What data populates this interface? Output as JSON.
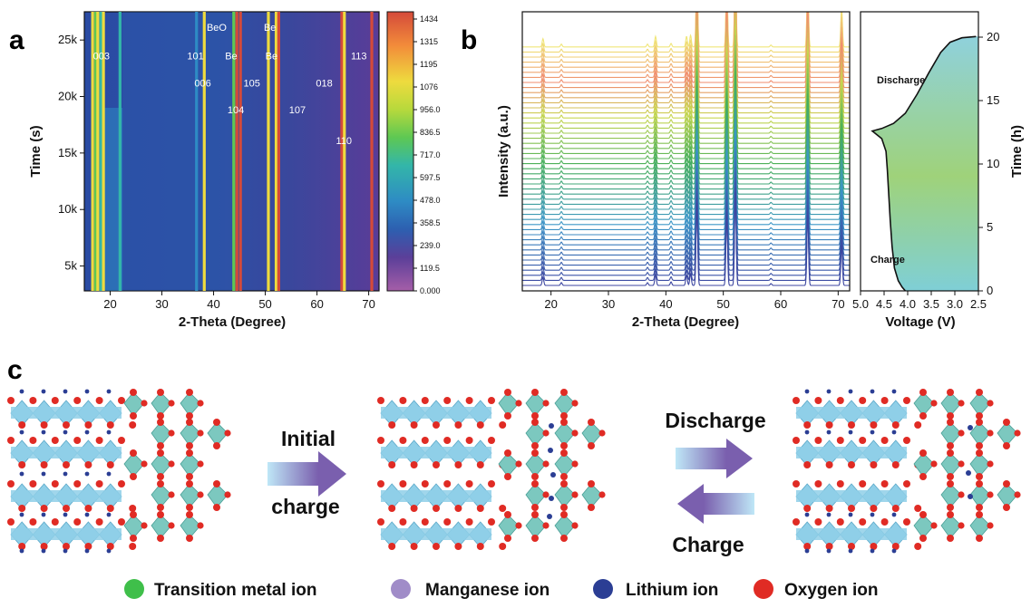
{
  "panels": {
    "a": "a",
    "b": "b",
    "c": "c"
  },
  "chart_data": [
    {
      "type": "heatmap",
      "panel": "a",
      "xlabel": "2-Theta (Degree)",
      "ylabel": "Time (s)",
      "xlim": [
        15,
        72
      ],
      "ylim": [
        2800,
        27500
      ],
      "x_ticks": [
        20,
        30,
        40,
        50,
        60,
        70
      ],
      "y_ticks": [
        {
          "value": 5000,
          "label": "5k"
        },
        {
          "value": 10000,
          "label": "10k"
        },
        {
          "value": 15000,
          "label": "15k"
        },
        {
          "value": 20000,
          "label": "20k"
        },
        {
          "value": 25000,
          "label": "25k"
        }
      ],
      "colorbar": {
        "min": 0,
        "max": 1434,
        "tick_labels": [
          "1434",
          "1315",
          "1195",
          "1076",
          "956.0",
          "836.5",
          "717.0",
          "597.5",
          "478.0",
          "358.5",
          "239.0",
          "119.5",
          "0.000"
        ],
        "colors": [
          "#d44a3a",
          "#ef6a3c",
          "#f28b3a",
          "#f6b33d",
          "#eedb3e",
          "#b7d93c",
          "#5ec853",
          "#33b6a9",
          "#2e8bc4",
          "#2d5fb0",
          "#33469e",
          "#5b3f99",
          "#a55ea8"
        ]
      },
      "peak_labels": [
        {
          "text": "003",
          "x": 18.3,
          "y": 23300
        },
        {
          "text": "101",
          "x": 36.5,
          "y": 23300
        },
        {
          "text": "BeO",
          "x": 40.6,
          "y": 25800
        },
        {
          "text": "Be",
          "x": 43.4,
          "y": 23300
        },
        {
          "text": "Be",
          "x": 50.9,
          "y": 25800
        },
        {
          "text": "Be",
          "x": 51.2,
          "y": 23300
        },
        {
          "text": "113",
          "x": 68.1,
          "y": 23300
        },
        {
          "text": "006",
          "x": 37.9,
          "y": 20900
        },
        {
          "text": "105",
          "x": 47.4,
          "y": 20900
        },
        {
          "text": "018",
          "x": 61.4,
          "y": 20900
        },
        {
          "text": "104",
          "x": 44.3,
          "y": 18500
        },
        {
          "text": "107",
          "x": 56.2,
          "y": 18500
        },
        {
          "text": "110",
          "x": 65.2,
          "y": 15800
        }
      ],
      "lines": [
        {
          "x": 16.6,
          "color": "#eedb3e"
        },
        {
          "x": 17.2,
          "color": "#5ec853"
        },
        {
          "x": 17.6,
          "color": "#eedb3e"
        },
        {
          "x": 18.2,
          "color": "#33b6a9"
        },
        {
          "x": 18.7,
          "color": "#eedb3e"
        },
        {
          "x": 21.9,
          "color": "#33b6a9"
        },
        {
          "x": 36.7,
          "color": "#2e8bc4"
        },
        {
          "x": 38.2,
          "color": "#eedb3e"
        },
        {
          "x": 43.9,
          "color": "#5ec853"
        },
        {
          "x": 44.5,
          "color": "#d44a3a"
        },
        {
          "x": 45.2,
          "color": "#d44a3a"
        },
        {
          "x": 50.6,
          "color": "#eedb3e"
        },
        {
          "x": 52.1,
          "color": "#eedb3e"
        },
        {
          "x": 52.6,
          "color": "#d44a3a"
        },
        {
          "x": 64.8,
          "color": "#d44a3a"
        },
        {
          "x": 65.3,
          "color": "#eedb3e"
        },
        {
          "x": 70.6,
          "color": "#d44a3a"
        }
      ]
    },
    {
      "type": "line",
      "panel": "b-left",
      "xlabel": "2-Theta (Degree)",
      "ylabel": "Intensity (a.u.)",
      "xlim": [
        15,
        72
      ],
      "x_ticks": [
        20,
        30,
        40,
        50,
        60,
        70
      ],
      "n_patterns": 48,
      "peaks": [
        {
          "x": 18.6,
          "h": 0.35
        },
        {
          "x": 21.8,
          "h": 0.12
        },
        {
          "x": 36.8,
          "h": 0.12
        },
        {
          "x": 38.2,
          "h": 0.45
        },
        {
          "x": 40.9,
          "h": 0.15
        },
        {
          "x": 43.6,
          "h": 0.45
        },
        {
          "x": 44.3,
          "h": 0.5
        },
        {
          "x": 45.4,
          "h": 3.5
        },
        {
          "x": 50.6,
          "h": 3.0
        },
        {
          "x": 52.1,
          "h": 4.0
        },
        {
          "x": 58.3,
          "h": 0.08
        },
        {
          "x": 64.7,
          "h": 3.0
        },
        {
          "x": 70.6,
          "h": 1.7
        }
      ]
    },
    {
      "type": "area",
      "panel": "b-right",
      "xlabel": "Voltage (V)",
      "ylabel": "Time (h)",
      "xlim": [
        5.0,
        2.5
      ],
      "ylim": [
        0,
        22
      ],
      "x_ticks": [
        {
          "value": 5.0,
          "label": "5.0"
        },
        {
          "value": 4.5,
          "label": "4.5"
        },
        {
          "value": 4.0,
          "label": "4.0"
        },
        {
          "value": 3.5,
          "label": "3.5"
        },
        {
          "value": 3.0,
          "label": "3.0"
        },
        {
          "value": 2.5,
          "label": "2.5"
        }
      ],
      "y_ticks": [
        0,
        5,
        10,
        15,
        20
      ],
      "annotations": [
        "Discharge",
        "Charge"
      ],
      "points": [
        [
          4.05,
          0.0
        ],
        [
          4.12,
          0.3
        ],
        [
          4.2,
          0.8
        ],
        [
          4.28,
          1.8
        ],
        [
          4.33,
          3.5
        ],
        [
          4.37,
          5.5
        ],
        [
          4.4,
          7.5
        ],
        [
          4.43,
          9.5
        ],
        [
          4.46,
          11.0
        ],
        [
          4.55,
          12.0
        ],
        [
          4.75,
          12.6
        ],
        [
          4.55,
          12.8
        ],
        [
          4.3,
          13.2
        ],
        [
          4.05,
          14.0
        ],
        [
          3.8,
          15.5
        ],
        [
          3.55,
          17.2
        ],
        [
          3.3,
          18.8
        ],
        [
          3.1,
          19.6
        ],
        [
          2.85,
          19.95
        ],
        [
          2.55,
          20.05
        ]
      ]
    }
  ],
  "diagram": {
    "steps": [
      "Initial",
      "charge",
      "Discharge",
      "Charge"
    ],
    "legend": [
      {
        "label": "Transition metal ion",
        "color": "#3fbf4a"
      },
      {
        "label": "Manganese ion",
        "color": "#a08cc8"
      },
      {
        "label": "Lithium ion",
        "color": "#2b3e94"
      },
      {
        "label": "Oxygen ion",
        "color": "#e02b24"
      }
    ],
    "colors": {
      "octahedron": "#8fcfe8",
      "octa_edge": "#5aa8c9",
      "spinel": "#7cc8bf",
      "oxygen": "#e02b24",
      "lithium": "#2b3e94",
      "arrow_from": "#bfe7f7",
      "arrow_to": "#7a5fae"
    }
  }
}
